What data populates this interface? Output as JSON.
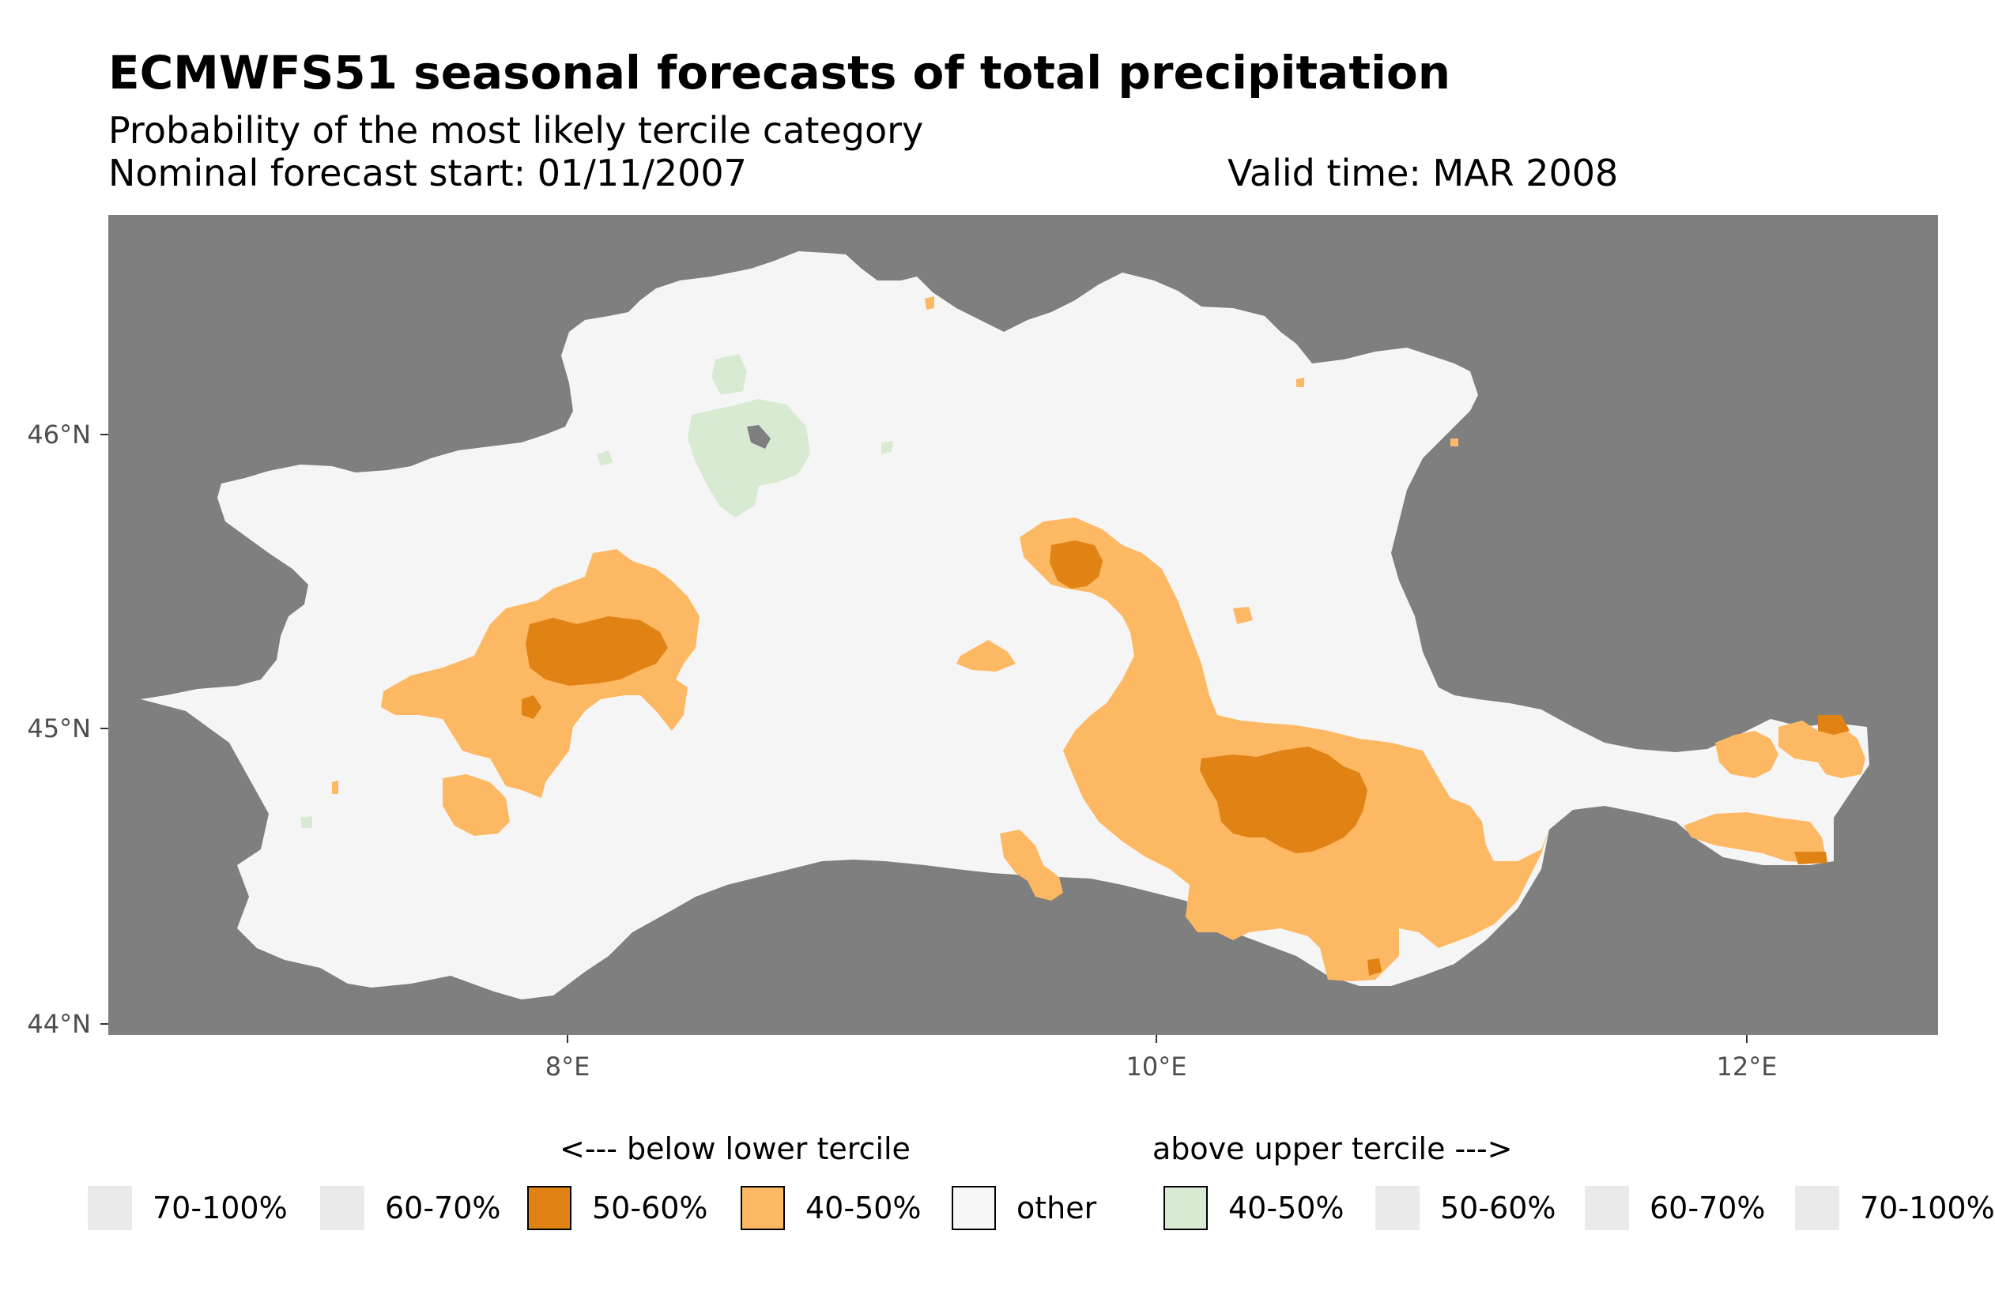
{
  "title": "ECMWFS51 seasonal forecasts of total precipitation",
  "subtitle": "Probability of the most likely tercile category",
  "forecast_start": "Nominal forecast start: 01/11/2007",
  "valid_time": "Valid time: MAR 2008",
  "map": {
    "background_color": "#7f7f7f",
    "region_color": "#f5f5f5",
    "y_axis": {
      "ticks": [
        "46°N",
        "45°N",
        "44°N"
      ],
      "values": [
        46,
        45,
        44
      ],
      "range": [
        43.96,
        46.74
      ]
    },
    "x_axis": {
      "ticks": [
        "8°E",
        "10°E",
        "12°E"
      ],
      "values": [
        8,
        10,
        12
      ],
      "range": [
        6.45,
        12.66
      ]
    }
  },
  "legend": {
    "below_label": "<--- below lower tercile",
    "above_label": "above upper tercile --->",
    "items": [
      {
        "label": "70-100%",
        "color": "#eaeaea",
        "outlined": false
      },
      {
        "label": "60-70%",
        "color": "#eaeaea",
        "outlined": false
      },
      {
        "label": "50-60%",
        "color": "#e08214",
        "outlined": true
      },
      {
        "label": "40-50%",
        "color": "#fdb863",
        "outlined": true
      },
      {
        "label": "other",
        "color": "#f7f7f7",
        "outlined": true
      },
      {
        "label": "40-50%",
        "color": "#d9ead3",
        "outlined": true
      },
      {
        "label": "50-60%",
        "color": "#eaeaea",
        "outlined": false
      },
      {
        "label": "60-70%",
        "color": "#eaeaea",
        "outlined": false
      },
      {
        "label": "70-100%",
        "color": "#eaeaea",
        "outlined": false
      }
    ]
  },
  "colors": {
    "below_50_60": "#e08214",
    "below_40_50": "#fdb863",
    "above_40_50": "#d9ead3",
    "other": "#f5f5f5"
  }
}
